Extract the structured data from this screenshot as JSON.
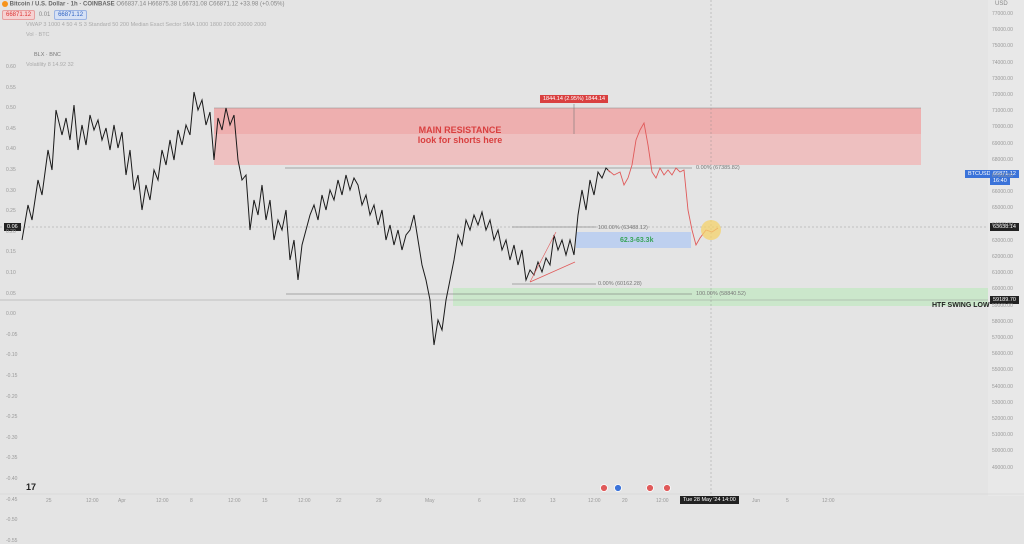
{
  "header": {
    "symbol_icon": "bitcoin-icon",
    "title": "Bitcoin / U.S. Dollar · 1h · COINBASE",
    "ohlc": "O66837.14 H66875.38 L66731.08 C66871.12 +33.98 (+0.05%)",
    "bid": "66871.12",
    "spread": "0.01",
    "ask": "66871.12",
    "currency": "USD"
  },
  "indicators": [
    "Vol · BTC",
    "BLX · BNC",
    "Volatility 8 14.92 32"
  ],
  "top_indicator": "VWAP 3 1000 4 50 4 S 3 Standard 50 200 Median Exact Sector SMA 1000 1800 2000 20000 2000",
  "annotations": {
    "resistance_line1": "MAIN RESISTANCE",
    "resistance_line2": "look for shorts here",
    "measure": "1844.14 (2.95%) 1844.14",
    "fib_top_0": "0.00% (67385.82)",
    "fib_mid_100": "100.00% (63488.12)",
    "fib_target": "62.3-63.3k",
    "fib_low_0": "0.00% (60162.28)",
    "fib_low_100": "100.00% (58840.52)",
    "htf_label": "HTF SWING LOW",
    "price_label_btcusd": "BTCUSD",
    "price_btcusd": "66871.12",
    "price_time": "16:40",
    "crosshair_price": "63638.14",
    "swing_low_price": "59189.70",
    "crosshair_left": "0.06",
    "crosshair_time": "Tue 28 May '24  14:00"
  },
  "right_axis": [
    "77000.00",
    "76000.00",
    "75000.00",
    "74000.00",
    "73000.00",
    "72000.00",
    "71000.00",
    "70000.00",
    "69000.00",
    "68000.00",
    "67000.00",
    "66000.00",
    "65000.00",
    "64000.00",
    "63000.00",
    "62000.00",
    "61000.00",
    "60000.00",
    "59000.00",
    "58000.00",
    "57000.00",
    "56000.00",
    "55000.00",
    "54000.00",
    "53000.00",
    "52000.00",
    "51000.00",
    "50000.00",
    "49000.00"
  ],
  "left_axis": [
    "0.60",
    "0.55",
    "0.50",
    "0.45",
    "0.40",
    "0.35",
    "0.30",
    "0.25",
    "0.20",
    "0.15",
    "0.10",
    "0.05",
    "0.00",
    "-0.05",
    "-0.10",
    "-0.15",
    "-0.20",
    "-0.25",
    "-0.30",
    "-0.35",
    "-0.40",
    "-0.45",
    "-0.50",
    "-0.55"
  ],
  "bottom_axis": [
    "25",
    "12:00",
    "Apr",
    "12:00",
    "8",
    "12:00",
    "15",
    "12:00",
    "22",
    "29",
    "May",
    "6",
    "12:00",
    "13",
    "12:00",
    "20",
    "12:00",
    "Jun",
    "5",
    "12:00"
  ],
  "colors": {
    "resistance": "#f2b5b5",
    "support": "#c7e8c7",
    "target_box": "#b9cdf0",
    "price_line": "#1a1a1a",
    "projection": "#e05a5a",
    "highlight": "#f5d36b",
    "price_tag": "#3b73d9"
  }
}
